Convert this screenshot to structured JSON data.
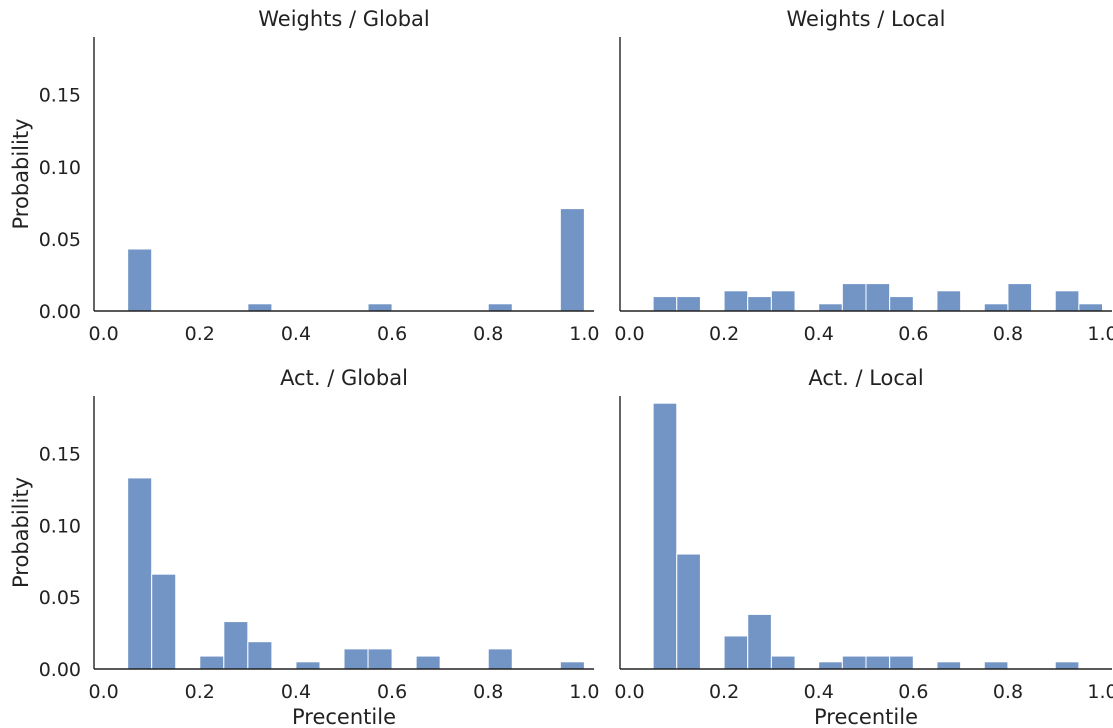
{
  "chart_data": [
    {
      "type": "bar",
      "title": "Weights / Global",
      "xlabel": "",
      "ylabel": "Probability",
      "xlim": [
        -0.02,
        1.02
      ],
      "ylim": [
        0,
        0.19
      ],
      "xticks": [
        "0.0",
        "0.2",
        "0.4",
        "0.6",
        "0.8",
        "1.0"
      ],
      "yticks": [
        "0.00",
        "0.05",
        "0.10",
        "0.15"
      ],
      "bin_width": 0.05,
      "bin_starts": [
        0.05,
        0.3,
        0.55,
        0.8,
        0.95
      ],
      "values": [
        0.043,
        0.005,
        0.005,
        0.005,
        0.071
      ],
      "color": "#7295c6"
    },
    {
      "type": "bar",
      "title": "Weights / Local",
      "xlabel": "",
      "ylabel": "",
      "xlim": [
        -0.02,
        1.02
      ],
      "ylim": [
        0,
        0.19
      ],
      "xticks": [
        "0.0",
        "0.2",
        "0.4",
        "0.6",
        "0.8",
        "1.0"
      ],
      "yticks": [],
      "bin_width": 0.05,
      "bin_starts": [
        0.05,
        0.1,
        0.2,
        0.25,
        0.3,
        0.4,
        0.45,
        0.5,
        0.55,
        0.65,
        0.75,
        0.8,
        0.9,
        0.95
      ],
      "values": [
        0.01,
        0.01,
        0.014,
        0.01,
        0.014,
        0.005,
        0.019,
        0.019,
        0.01,
        0.014,
        0.005,
        0.019,
        0.014,
        0.005
      ],
      "color": "#7295c6"
    },
    {
      "type": "bar",
      "title": "Act. / Global",
      "xlabel": "Precentile",
      "ylabel": "Probability",
      "xlim": [
        -0.02,
        1.02
      ],
      "ylim": [
        0,
        0.19
      ],
      "xticks": [
        "0.0",
        "0.2",
        "0.4",
        "0.6",
        "0.8",
        "1.0"
      ],
      "yticks": [
        "0.00",
        "0.05",
        "0.10",
        "0.15"
      ],
      "bin_width": 0.05,
      "bin_starts": [
        0.05,
        0.1,
        0.2,
        0.25,
        0.3,
        0.4,
        0.5,
        0.55,
        0.65,
        0.8,
        0.95
      ],
      "values": [
        0.133,
        0.066,
        0.009,
        0.033,
        0.019,
        0.005,
        0.014,
        0.014,
        0.009,
        0.014,
        0.005
      ],
      "color": "#7295c6"
    },
    {
      "type": "bar",
      "title": "Act. / Local",
      "xlabel": "Precentile",
      "ylabel": "",
      "xlim": [
        -0.02,
        1.02
      ],
      "ylim": [
        0,
        0.19
      ],
      "xticks": [
        "0.0",
        "0.2",
        "0.4",
        "0.6",
        "0.8",
        "1.0"
      ],
      "yticks": [],
      "bin_width": 0.05,
      "bin_starts": [
        0.05,
        0.1,
        0.2,
        0.25,
        0.3,
        0.4,
        0.45,
        0.5,
        0.55,
        0.65,
        0.75,
        0.9
      ],
      "values": [
        0.185,
        0.08,
        0.023,
        0.038,
        0.009,
        0.005,
        0.009,
        0.009,
        0.009,
        0.005,
        0.005,
        0.005
      ],
      "color": "#7295c6"
    }
  ]
}
